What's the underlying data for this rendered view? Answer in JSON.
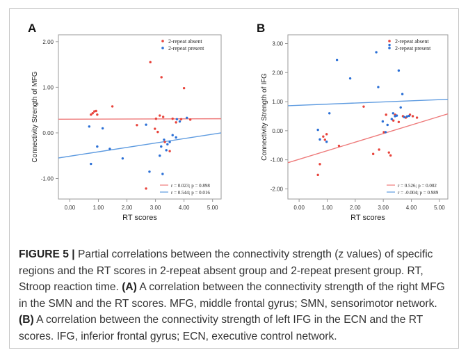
{
  "caption": {
    "lead": "FIGURE 5 |",
    "p1": " Partial correlations between the connectivity strength (z values) of specific regions and the RT scores in 2-repeat absent group and 2-repeat present group. RT, Stroop reaction time. ",
    "labelA": "(A)",
    "p2": " A correlation between the connectivity strength of the right MFG in the SMN and the RT scores. MFG, middle frontal gyrus; SMN, sensorimotor network. ",
    "labelB": "(B)",
    "p3": " A correlation between the connectivity strength of left IFG in the ECN and the RT scores. IFG, inferior frontal gyrus; ECN, executive control network."
  },
  "colors": {
    "absent": "#e8433b",
    "present": "#2a6fd6",
    "line_absent": "#ee7a7a",
    "line_present": "#5e9be0"
  },
  "chart_data": [
    {
      "type": "scatter",
      "panel_label": "A",
      "xlabel": "RT scores",
      "ylabel": "Connectivity Strength of MFG",
      "xlim": [
        -0.4,
        5.3
      ],
      "ylim": [
        -1.45,
        2.15
      ],
      "x_ticks": [
        "0.00",
        "1.00",
        "2.00",
        "3.00",
        "4.00",
        "5.00"
      ],
      "y_ticks": [
        "-1.00",
        "0.00",
        "1.00",
        "2.00"
      ],
      "grid": false,
      "legend_position": "top-right",
      "series": [
        {
          "name": "2-repeat absent",
          "color_key": "absent",
          "points": [
            [
              0.74,
              0.4
            ],
            [
              0.8,
              0.43
            ],
            [
              0.86,
              0.47
            ],
            [
              0.92,
              0.48
            ],
            [
              0.96,
              0.4
            ],
            [
              1.49,
              0.58
            ],
            [
              2.35,
              0.17
            ],
            [
              2.67,
              -1.22
            ],
            [
              2.82,
              1.55
            ],
            [
              2.98,
              0.09
            ],
            [
              3.02,
              0.31
            ],
            [
              3.08,
              0.02
            ],
            [
              3.15,
              0.38
            ],
            [
              3.21,
              1.22
            ],
            [
              3.27,
              0.35
            ],
            [
              3.33,
              -0.2
            ],
            [
              3.5,
              -0.4
            ],
            [
              3.6,
              0.31
            ],
            [
              3.72,
              0.23
            ],
            [
              3.9,
              0.3
            ],
            [
              4.0,
              0.98
            ],
            [
              4.22,
              0.29
            ]
          ]
        },
        {
          "name": "2-repeat present",
          "color_key": "present",
          "points": [
            [
              0.68,
              0.14
            ],
            [
              0.74,
              -0.68
            ],
            [
              0.96,
              -0.3
            ],
            [
              1.15,
              0.1
            ],
            [
              1.4,
              -0.35
            ],
            [
              1.85,
              -0.56
            ],
            [
              2.67,
              0.18
            ],
            [
              2.79,
              -0.85
            ],
            [
              3.15,
              -0.5
            ],
            [
              3.2,
              -0.3
            ],
            [
              3.25,
              -0.9
            ],
            [
              3.3,
              -0.15
            ],
            [
              3.38,
              -0.38
            ],
            [
              3.42,
              -0.25
            ],
            [
              3.5,
              -0.2
            ],
            [
              3.6,
              -0.05
            ],
            [
              3.72,
              -0.1
            ],
            [
              3.75,
              0.3
            ],
            [
              3.85,
              0.25
            ],
            [
              4.1,
              0.33
            ]
          ]
        }
      ],
      "fit_lines": [
        {
          "color_key": "line_absent",
          "x": [
            -0.4,
            5.3
          ],
          "y": [
            0.3,
            0.31
          ]
        },
        {
          "color_key": "line_present",
          "x": [
            -0.4,
            5.3
          ],
          "y": [
            -0.55,
            0.0
          ]
        }
      ],
      "stats_legend": [
        {
          "text": "r = 0.023; p = 0.898",
          "color_key": "line_absent"
        },
        {
          "text": "r = 0.544; p = 0.016",
          "color_key": "line_present"
        }
      ]
    },
    {
      "type": "scatter",
      "panel_label": "B",
      "xlabel": "RT scores",
      "ylabel": "Connectivity Strength of IFG",
      "xlim": [
        -0.4,
        5.3
      ],
      "ylim": [
        -2.35,
        3.3
      ],
      "x_ticks": [
        "0.00",
        "1.00",
        "2.00",
        "3.00",
        "4.00",
        "5.00"
      ],
      "y_ticks": [
        "-2.00",
        "-1.00",
        "0.00",
        "1.00",
        "2.00",
        "3.00"
      ],
      "grid": false,
      "legend_position": "top-right",
      "series": [
        {
          "name": "2-repeat absent",
          "color_key": "absent",
          "points": [
            [
              0.67,
              -1.52
            ],
            [
              0.74,
              -1.15
            ],
            [
              0.86,
              -0.2
            ],
            [
              0.92,
              -0.31
            ],
            [
              0.98,
              -0.12
            ],
            [
              1.42,
              -0.52
            ],
            [
              2.3,
              0.83
            ],
            [
              2.64,
              -0.8
            ],
            [
              2.85,
              -0.65
            ],
            [
              3.02,
              -0.05
            ],
            [
              3.1,
              0.55
            ],
            [
              3.2,
              -0.75
            ],
            [
              3.26,
              -0.85
            ],
            [
              3.36,
              0.35
            ],
            [
              3.42,
              0.55
            ],
            [
              3.55,
              0.3
            ],
            [
              3.7,
              0.5
            ],
            [
              3.8,
              0.45
            ],
            [
              3.95,
              0.55
            ],
            [
              4.05,
              0.5
            ],
            [
              4.2,
              0.45
            ]
          ]
        },
        {
          "name": "2-repeat present",
          "color_key": "present",
          "points": [
            [
              0.67,
              0.03
            ],
            [
              0.74,
              -0.3
            ],
            [
              0.98,
              -0.38
            ],
            [
              1.08,
              0.6
            ],
            [
              1.35,
              2.43
            ],
            [
              1.82,
              1.8
            ],
            [
              2.75,
              2.7
            ],
            [
              2.82,
              1.5
            ],
            [
              2.98,
              0.32
            ],
            [
              3.08,
              -0.05
            ],
            [
              3.15,
              0.2
            ],
            [
              3.22,
              2.95
            ],
            [
              3.3,
              0.4
            ],
            [
              3.35,
              0.6
            ],
            [
              3.42,
              0.5
            ],
            [
              3.48,
              0.52
            ],
            [
              3.55,
              2.07
            ],
            [
              3.62,
              0.8
            ],
            [
              3.68,
              1.26
            ],
            [
              3.75,
              0.47
            ],
            [
              3.85,
              0.49
            ],
            [
              3.92,
              0.51
            ]
          ]
        }
      ],
      "fit_lines": [
        {
          "color_key": "line_absent",
          "x": [
            -0.4,
            5.3
          ],
          "y": [
            -1.1,
            0.58
          ]
        },
        {
          "color_key": "line_present",
          "x": [
            -0.4,
            5.3
          ],
          "y": [
            0.86,
            1.08
          ]
        }
      ],
      "stats_legend": [
        {
          "text": "r = 0.526; p = 0.002",
          "color_key": "line_absent"
        },
        {
          "text": "r = -0.004; p = 0.989",
          "color_key": "line_present"
        }
      ]
    }
  ]
}
